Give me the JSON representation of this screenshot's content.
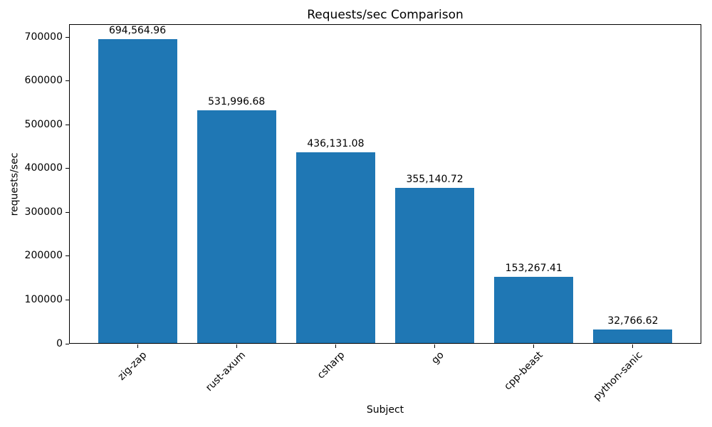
{
  "chart_data": {
    "type": "bar",
    "title": "Requests/sec Comparison",
    "xlabel": "Subject",
    "ylabel": "requests/sec",
    "categories": [
      "zig-zap",
      "rust-axum",
      "csharp",
      "go",
      "cpp-beast",
      "python-sanic"
    ],
    "values": [
      694564.96,
      531996.68,
      436131.08,
      355140.72,
      153267.41,
      32766.62
    ],
    "value_labels": [
      "694,564.96",
      "531,996.68",
      "436,131.08",
      "355,140.72",
      "153,267.41",
      "32,766.62"
    ],
    "bar_color": "#1f77b4",
    "axis_color": "#000000",
    "background_color": "#ffffff",
    "ylim": [
      0,
      729293
    ],
    "yticks": [
      0,
      100000,
      200000,
      300000,
      400000,
      500000,
      600000,
      700000
    ],
    "ytick_labels": [
      "0",
      "100000",
      "200000",
      "300000",
      "400000",
      "500000",
      "600000",
      "700000"
    ],
    "x_tick_rotation": 45,
    "grid": false,
    "legend": "none"
  }
}
